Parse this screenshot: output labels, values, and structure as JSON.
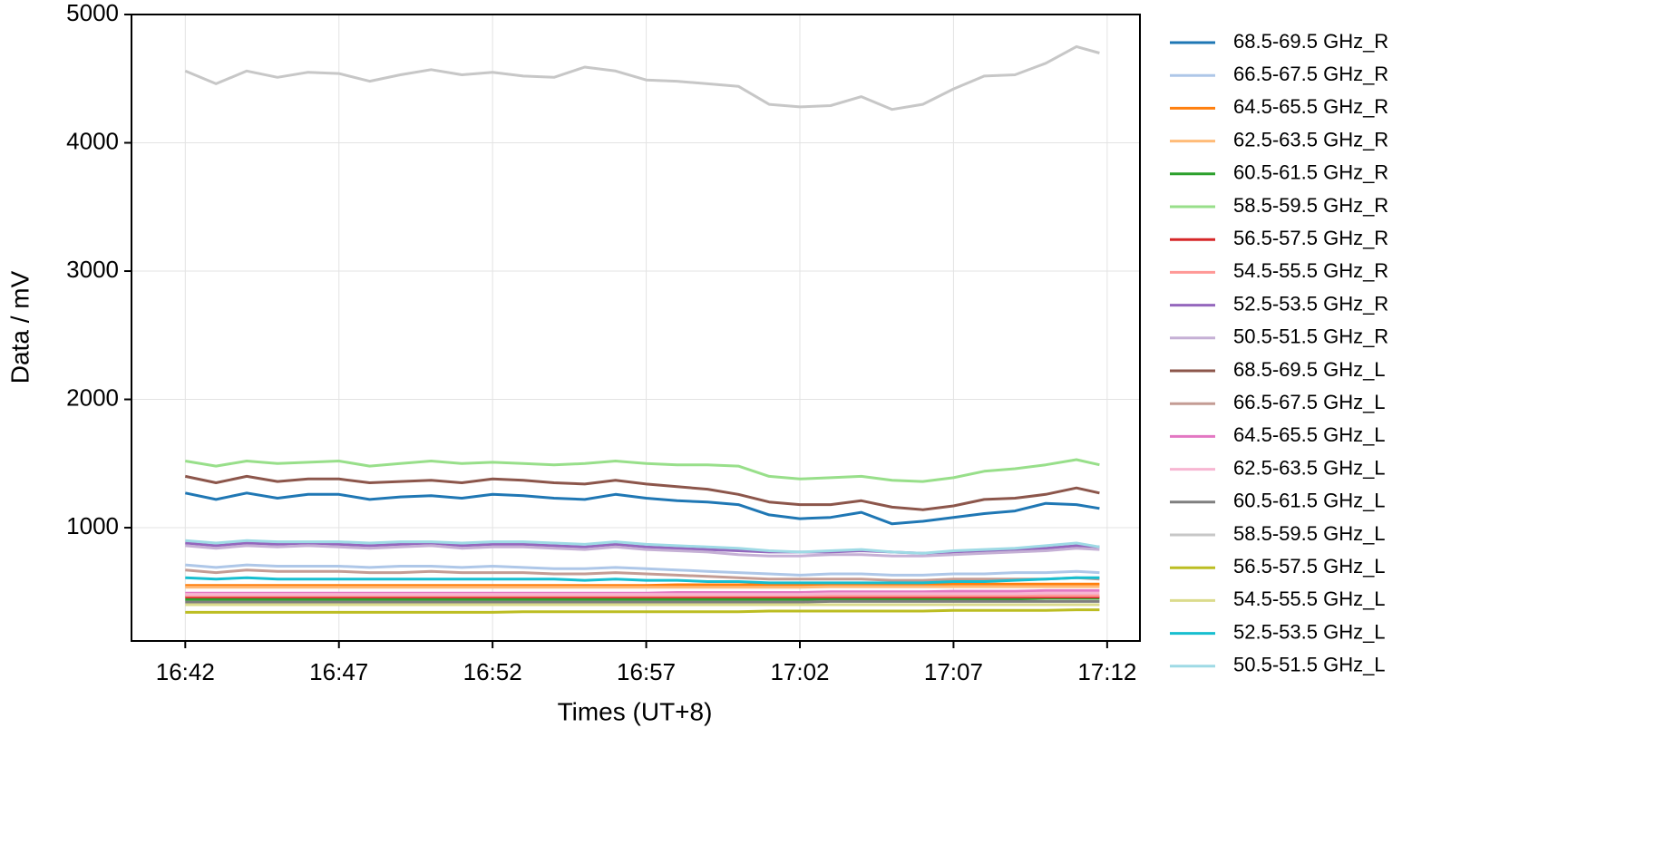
{
  "chart_data": {
    "type": "line",
    "x_label": "Times (UT+8)",
    "y_label": "Data / mV",
    "x": [
      "16:42",
      "16:43",
      "16:44",
      "16:45",
      "16:46",
      "16:47",
      "16:48",
      "16:49",
      "16:50",
      "16:51",
      "16:52",
      "16:53",
      "16:54",
      "16:55",
      "16:56",
      "16:57",
      "16:58",
      "16:59",
      "17:00",
      "17:01",
      "17:02",
      "17:03",
      "17:04",
      "17:05",
      "17:06",
      "17:07",
      "17:08",
      "17:09",
      "17:10",
      "17:11",
      "17:11:45"
    ],
    "xlim": [
      "16:40:15",
      "17:13:04"
    ],
    "xticks": [
      "16:42",
      "16:47",
      "16:52",
      "16:57",
      "17:02",
      "17:07",
      "17:12"
    ],
    "ylim": [
      117,
      5000
    ],
    "yticks": [
      1000,
      2000,
      3000,
      4000,
      5000
    ],
    "grid": true,
    "legend": "outside right",
    "series": [
      {
        "name": "68.5-69.5 GHz_R",
        "color": "#1f77b4",
        "values": [
          1270,
          1220,
          1270,
          1230,
          1260,
          1260,
          1220,
          1240,
          1250,
          1230,
          1260,
          1250,
          1230,
          1220,
          1260,
          1230,
          1210,
          1200,
          1180,
          1100,
          1070,
          1080,
          1120,
          1030,
          1050,
          1080,
          1110,
          1130,
          1190,
          1180,
          1150
        ]
      },
      {
        "name": "66.5-67.5 GHz_R",
        "color": "#aec7e8",
        "values": [
          710,
          690,
          710,
          700,
          700,
          700,
          690,
          700,
          700,
          690,
          700,
          690,
          680,
          680,
          690,
          680,
          670,
          660,
          650,
          640,
          630,
          640,
          640,
          630,
          630,
          640,
          640,
          650,
          650,
          660,
          650
        ]
      },
      {
        "name": "64.5-65.5 GHz_R",
        "color": "#ff7f0e",
        "values": [
          550,
          550,
          550,
          550,
          550,
          550,
          550,
          550,
          550,
          550,
          550,
          550,
          550,
          550,
          550,
          550,
          555,
          555,
          555,
          555,
          555,
          555,
          555,
          555,
          555,
          560,
          560,
          560,
          560,
          560,
          560
        ]
      },
      {
        "name": "62.5-63.5 GHz_R",
        "color": "#ffbb78",
        "values": [
          535,
          535,
          535,
          535,
          535,
          535,
          535,
          535,
          535,
          535,
          535,
          535,
          535,
          535,
          535,
          535,
          535,
          535,
          535,
          535,
          535,
          540,
          540,
          540,
          540,
          540,
          540,
          540,
          540,
          540,
          540
        ]
      },
      {
        "name": "60.5-61.5 GHz_R",
        "color": "#2ca02c",
        "values": [
          440,
          440,
          440,
          440,
          440,
          440,
          440,
          440,
          440,
          440,
          440,
          440,
          440,
          440,
          440,
          440,
          440,
          440,
          440,
          440,
          440,
          445,
          445,
          445,
          445,
          445,
          445,
          445,
          450,
          450,
          450
        ]
      },
      {
        "name": "58.5-59.5 GHz_R",
        "color": "#98df8a",
        "values": [
          1520,
          1480,
          1520,
          1500,
          1510,
          1520,
          1480,
          1500,
          1520,
          1500,
          1510,
          1500,
          1490,
          1500,
          1520,
          1500,
          1490,
          1490,
          1480,
          1400,
          1380,
          1390,
          1400,
          1370,
          1360,
          1390,
          1440,
          1460,
          1490,
          1530,
          1490
        ]
      },
      {
        "name": "56.5-57.5 GHz_R",
        "color": "#d62728",
        "values": [
          460,
          460,
          460,
          460,
          460,
          460,
          460,
          460,
          460,
          460,
          460,
          460,
          460,
          460,
          460,
          460,
          460,
          460,
          460,
          460,
          460,
          460,
          460,
          460,
          460,
          460,
          460,
          460,
          460,
          460,
          460
        ]
      },
      {
        "name": "54.5-55.5 GHz_R",
        "color": "#ff9896",
        "values": [
          470,
          470,
          470,
          470,
          470,
          470,
          470,
          470,
          470,
          470,
          470,
          470,
          470,
          470,
          470,
          470,
          470,
          470,
          470,
          470,
          470,
          470,
          470,
          470,
          470,
          470,
          470,
          470,
          470,
          470,
          470
        ]
      },
      {
        "name": "52.5-53.5 GHz_R",
        "color": "#9467bd",
        "values": [
          880,
          860,
          880,
          870,
          880,
          870,
          860,
          870,
          880,
          860,
          870,
          870,
          860,
          850,
          870,
          850,
          840,
          830,
          820,
          810,
          810,
          810,
          820,
          810,
          800,
          810,
          820,
          830,
          840,
          860,
          850
        ]
      },
      {
        "name": "50.5-51.5 GHz_R",
        "color": "#c5b0d5",
        "values": [
          860,
          840,
          860,
          850,
          860,
          850,
          840,
          850,
          860,
          840,
          850,
          850,
          840,
          830,
          850,
          830,
          820,
          810,
          790,
          780,
          780,
          790,
          790,
          780,
          780,
          790,
          800,
          810,
          820,
          840,
          830
        ]
      },
      {
        "name": "68.5-69.5 GHz_L",
        "color": "#8c564b",
        "values": [
          1400,
          1350,
          1400,
          1360,
          1380,
          1380,
          1350,
          1360,
          1370,
          1350,
          1380,
          1370,
          1350,
          1340,
          1370,
          1340,
          1320,
          1300,
          1260,
          1200,
          1180,
          1180,
          1210,
          1160,
          1140,
          1170,
          1220,
          1230,
          1260,
          1310,
          1270
        ]
      },
      {
        "name": "66.5-67.5 GHz_L",
        "color": "#c49c94",
        "values": [
          670,
          650,
          670,
          660,
          660,
          660,
          650,
          650,
          660,
          650,
          650,
          650,
          640,
          640,
          650,
          640,
          630,
          620,
          610,
          600,
          600,
          600,
          600,
          590,
          590,
          600,
          600,
          600,
          600,
          610,
          600
        ]
      },
      {
        "name": "64.5-65.5 GHz_L",
        "color": "#e377c2",
        "values": [
          490,
          490,
          490,
          490,
          490,
          490,
          490,
          490,
          490,
          490,
          490,
          490,
          490,
          490,
          490,
          490,
          495,
          495,
          495,
          495,
          495,
          500,
          500,
          500,
          500,
          505,
          505,
          505,
          510,
          510,
          510
        ]
      },
      {
        "name": "62.5-63.5 GHz_L",
        "color": "#f7b6d2",
        "values": [
          480,
          480,
          480,
          480,
          480,
          480,
          480,
          480,
          480,
          480,
          480,
          480,
          480,
          480,
          480,
          480,
          480,
          480,
          480,
          480,
          480,
          485,
          485,
          485,
          485,
          485,
          485,
          485,
          490,
          490,
          490
        ]
      },
      {
        "name": "60.5-61.5 GHz_L",
        "color": "#7f7f7f",
        "values": [
          420,
          420,
          420,
          420,
          420,
          420,
          420,
          420,
          420,
          420,
          420,
          420,
          420,
          420,
          420,
          420,
          420,
          420,
          420,
          420,
          420,
          425,
          425,
          425,
          425,
          425,
          425,
          425,
          425,
          425,
          425
        ]
      },
      {
        "name": "58.5-59.5 GHz_L",
        "color": "#c7c7c7",
        "values": [
          4560,
          4460,
          4560,
          4510,
          4550,
          4540,
          4480,
          4530,
          4570,
          4530,
          4550,
          4520,
          4510,
          4590,
          4560,
          4490,
          4480,
          4460,
          4440,
          4300,
          4280,
          4290,
          4360,
          4260,
          4300,
          4420,
          4520,
          4530,
          4620,
          4750,
          4700
        ]
      },
      {
        "name": "56.5-57.5 GHz_L",
        "color": "#bcbd22",
        "values": [
          340,
          340,
          340,
          340,
          340,
          340,
          340,
          340,
          340,
          340,
          340,
          345,
          345,
          345,
          345,
          345,
          345,
          345,
          345,
          350,
          350,
          350,
          350,
          350,
          350,
          355,
          355,
          355,
          355,
          360,
          360
        ]
      },
      {
        "name": "54.5-55.5 GHz_L",
        "color": "#dbdb8d",
        "values": [
          400,
          400,
          400,
          400,
          400,
          400,
          400,
          400,
          400,
          400,
          400,
          400,
          400,
          400,
          400,
          400,
          400,
          400,
          400,
          400,
          400,
          400,
          400,
          400,
          400,
          400,
          400,
          400,
          400,
          400,
          400
        ]
      },
      {
        "name": "52.5-53.5 GHz_L",
        "color": "#17becf",
        "values": [
          610,
          600,
          610,
          600,
          600,
          600,
          600,
          600,
          600,
          600,
          600,
          600,
          600,
          590,
          600,
          590,
          590,
          580,
          580,
          570,
          570,
          570,
          570,
          570,
          570,
          580,
          580,
          590,
          600,
          610,
          610
        ]
      },
      {
        "name": "50.5-51.5 GHz_L",
        "color": "#9edae5",
        "values": [
          900,
          880,
          900,
          890,
          890,
          890,
          880,
          890,
          890,
          880,
          890,
          890,
          880,
          870,
          890,
          870,
          860,
          850,
          840,
          820,
          810,
          820,
          830,
          810,
          800,
          820,
          830,
          840,
          860,
          880,
          850
        ]
      }
    ]
  }
}
